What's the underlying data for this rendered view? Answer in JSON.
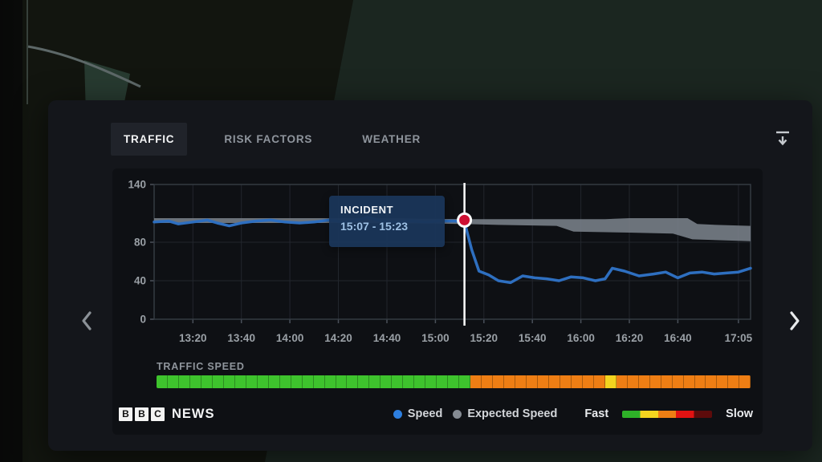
{
  "tabs": [
    {
      "label": "TRAFFIC",
      "active": true
    },
    {
      "label": "RISK FACTORS",
      "active": false
    },
    {
      "label": "WEATHER",
      "active": false
    }
  ],
  "toolbar": {
    "collapse_icon": "collapse-download-icon"
  },
  "incident": {
    "title": "INCIDENT",
    "range": "15:07 - 15:23",
    "marker_time": "15:12",
    "marker_value": 103,
    "marker_color": "#cf1033",
    "line_color": "#ffffff"
  },
  "chart_data": {
    "type": "line",
    "title": "",
    "xlabel": "",
    "ylabel": "",
    "ylim": [
      0,
      140
    ],
    "y_ticks": [
      0,
      40,
      80,
      140
    ],
    "x_ticks": [
      "13:20",
      "13:40",
      "14:00",
      "14:20",
      "14:40",
      "15:00",
      "15:20",
      "15:40",
      "16:00",
      "16:20",
      "16:40",
      "17:05"
    ],
    "x_range": [
      "13:04",
      "17:10"
    ],
    "grid": true,
    "legend_position": "bottom",
    "series": [
      {
        "name": "Speed",
        "color": "#2e6fc0",
        "points": [
          [
            "13:04",
            101
          ],
          [
            "13:10",
            102
          ],
          [
            "13:14",
            99
          ],
          [
            "13:20",
            101
          ],
          [
            "13:26",
            103
          ],
          [
            "13:30",
            100
          ],
          [
            "13:35",
            97
          ],
          [
            "13:40",
            100
          ],
          [
            "13:46",
            102
          ],
          [
            "13:52",
            103
          ],
          [
            "13:58",
            101
          ],
          [
            "14:04",
            100
          ],
          [
            "14:10",
            101
          ],
          [
            "14:16",
            103
          ],
          [
            "14:22",
            101
          ],
          [
            "14:28",
            103
          ],
          [
            "14:32",
            106
          ],
          [
            "14:38",
            102
          ],
          [
            "14:44",
            101
          ],
          [
            "14:50",
            102
          ],
          [
            "14:56",
            101
          ],
          [
            "15:02",
            102
          ],
          [
            "15:08",
            102
          ],
          [
            "15:12",
            101
          ],
          [
            "15:15",
            72
          ],
          [
            "15:18",
            50
          ],
          [
            "15:22",
            46
          ],
          [
            "15:26",
            40
          ],
          [
            "15:31",
            38
          ],
          [
            "15:36",
            45
          ],
          [
            "15:41",
            43
          ],
          [
            "15:46",
            42
          ],
          [
            "15:51",
            40
          ],
          [
            "15:56",
            44
          ],
          [
            "16:01",
            43
          ],
          [
            "16:06",
            40
          ],
          [
            "16:10",
            42
          ],
          [
            "16:13",
            53
          ],
          [
            "16:18",
            50
          ],
          [
            "16:24",
            45
          ],
          [
            "16:30",
            47
          ],
          [
            "16:35",
            49
          ],
          [
            "16:40",
            43
          ],
          [
            "16:45",
            48
          ],
          [
            "16:50",
            49
          ],
          [
            "16:55",
            47
          ],
          [
            "17:00",
            48
          ],
          [
            "17:05",
            49
          ],
          [
            "17:10",
            53
          ]
        ]
      },
      {
        "name": "Expected Speed",
        "type": "band",
        "color": "#7a818a",
        "upper": [
          [
            "13:04",
            105
          ],
          [
            "14:30",
            105
          ],
          [
            "15:12",
            104
          ],
          [
            "16:10",
            104
          ],
          [
            "16:20",
            105
          ],
          [
            "16:44",
            105
          ],
          [
            "16:48",
            99
          ],
          [
            "16:56",
            98
          ],
          [
            "17:10",
            97
          ]
        ],
        "lower": [
          [
            "13:04",
            100
          ],
          [
            "14:30",
            100
          ],
          [
            "15:12",
            99
          ],
          [
            "15:26",
            98
          ],
          [
            "15:50",
            97
          ],
          [
            "15:57",
            91
          ],
          [
            "16:20",
            90
          ],
          [
            "16:38",
            89
          ],
          [
            "16:46",
            83
          ],
          [
            "17:10",
            81
          ]
        ]
      }
    ]
  },
  "traffic_speed": {
    "label": "TRAFFIC SPEED",
    "segment_runs": [
      {
        "color": "green",
        "count": 28
      },
      {
        "color": "orange",
        "count": 12
      },
      {
        "color": "yellow",
        "count": 1
      },
      {
        "color": "orange",
        "count": 12
      }
    ],
    "colors": {
      "green": "#3ec32d",
      "orange": "#ee7e14",
      "yellow": "#f3d41f"
    }
  },
  "legend": {
    "speed_label": "Speed",
    "speed_color": "#2d7fe0",
    "expected_label": "Expected Speed",
    "expected_color": "#858b93",
    "fast_label": "Fast",
    "slow_label": "Slow",
    "gradient": [
      "#2eb228",
      "#f3d41f",
      "#ee7e14",
      "#e11212",
      "#5d0b0b"
    ]
  },
  "brand": {
    "blocks": [
      "B",
      "B",
      "C"
    ],
    "name": "NEWS"
  }
}
